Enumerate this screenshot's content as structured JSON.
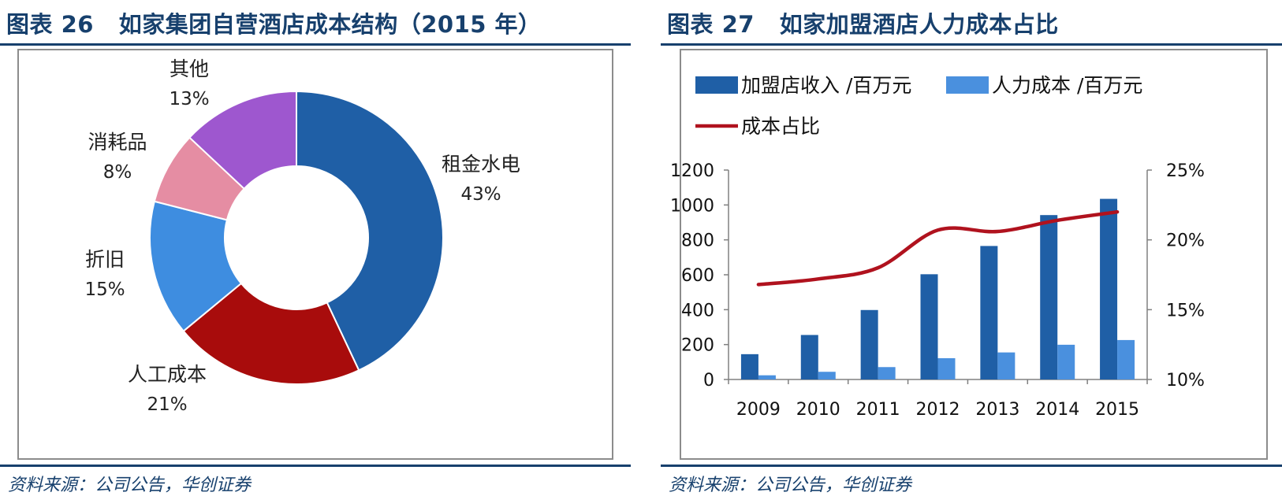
{
  "left_panel": {
    "title": "图表 26   如家集团自营酒店成本结构（2015 年）",
    "source": "资料来源：公司公告，华创证券"
  },
  "right_panel": {
    "title": "图表 27   如家加盟酒店人力成本占比",
    "source": "资料来源：公司公告，华创证券"
  },
  "chart_data": [
    {
      "type": "pie",
      "donut": true,
      "slices": [
        {
          "label": "租金水电",
          "value": 43,
          "pct_label": "43%",
          "color": "#1f5fa6"
        },
        {
          "label": "人工成本",
          "value": 21,
          "pct_label": "21%",
          "color": "#a80c0c"
        },
        {
          "label": "折旧",
          "value": 15,
          "pct_label": "15%",
          "color": "#3e8de0"
        },
        {
          "label": "消耗品",
          "value": 8,
          "pct_label": "8%",
          "color": "#e58da3"
        },
        {
          "label": "其他",
          "value": 13,
          "pct_label": "13%",
          "color": "#9e57cf"
        }
      ]
    },
    {
      "type": "bar",
      "categories": [
        "2009",
        "2010",
        "2011",
        "2012",
        "2013",
        "2014",
        "2015"
      ],
      "series": [
        {
          "name": "加盟店收入 /百万元",
          "type": "bar",
          "axis": "left",
          "color": "#1f5fa6",
          "values": [
            145,
            255,
            398,
            603,
            765,
            942,
            1035
          ]
        },
        {
          "name": "人力成本 /百万元",
          "type": "bar",
          "axis": "left",
          "color": "#4a90de",
          "values": [
            24,
            44,
            71,
            122,
            155,
            199,
            226
          ]
        },
        {
          "name": "成本占比",
          "type": "line",
          "axis": "right",
          "color": "#b0121e",
          "values": [
            0.168,
            0.172,
            0.18,
            0.207,
            0.206,
            0.214,
            0.22
          ]
        }
      ],
      "ylim": [
        0,
        1200
      ],
      "yticks": [
        "0",
        "200",
        "400",
        "600",
        "800",
        "1000",
        "1200"
      ],
      "y2lim": [
        0.1,
        0.25
      ],
      "y2ticks": [
        "10%",
        "15%",
        "20%",
        "25%"
      ],
      "legend_position": "top",
      "grid": false
    }
  ]
}
